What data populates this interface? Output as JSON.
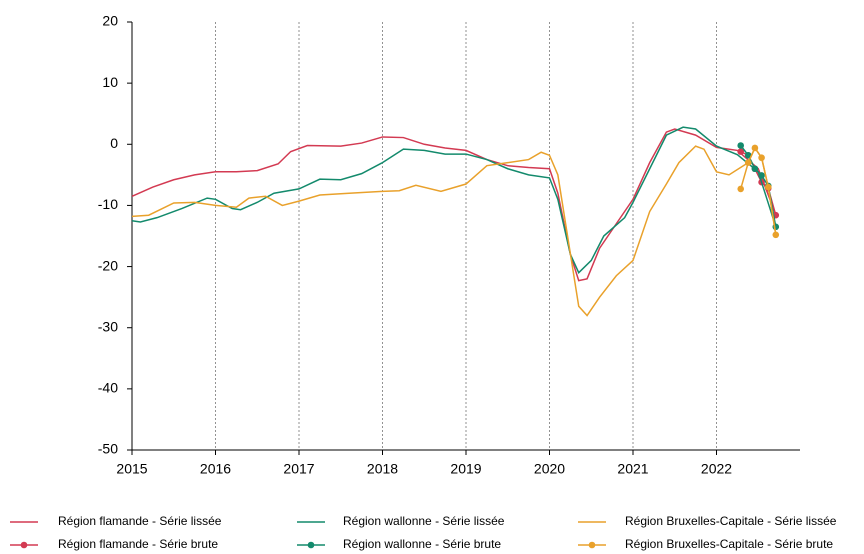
{
  "chart_data": {
    "type": "line",
    "xlim": [
      2015,
      2023
    ],
    "xticks": [
      2015,
      2016,
      2017,
      2018,
      2019,
      2020,
      2021,
      2022
    ],
    "ylim": [
      -50,
      20
    ],
    "yticks": [
      -50,
      -40,
      -30,
      -20,
      -10,
      0,
      10,
      20
    ],
    "grid": "x",
    "legend": "bottom",
    "series": [
      {
        "name": "Région flamande - Série lissée",
        "color": "#d33a52",
        "marker": false,
        "x": [
          2015,
          2015.25,
          2015.5,
          2015.75,
          2016,
          2016.25,
          2016.5,
          2016.75,
          2016.9,
          2017.1,
          2017.5,
          2017.75,
          2018,
          2018.25,
          2018.5,
          2018.75,
          2019,
          2019.25,
          2019.5,
          2019.75,
          2020,
          2020.1,
          2020.25,
          2020.35,
          2020.45,
          2020.6,
          2020.75,
          2021,
          2021.2,
          2021.4,
          2021.5,
          2021.75,
          2022,
          2022.25,
          2022.5,
          2022.71
        ],
        "values": [
          -8.5,
          -7,
          -5.8,
          -5,
          -4.5,
          -4.5,
          -4.3,
          -3.2,
          -1.2,
          -0.2,
          -0.3,
          0.2,
          1.2,
          1.1,
          0,
          -0.6,
          -1,
          -2.5,
          -3.5,
          -3.8,
          -4,
          -8,
          -18,
          -22.3,
          -22,
          -17,
          -14,
          -9,
          -3,
          2,
          2.5,
          1.5,
          -0.5,
          -1,
          -4,
          -11.5
        ]
      },
      {
        "name": "Région flamande - Série brute",
        "color": "#d33a52",
        "marker": true,
        "x": [
          2022.29,
          2022.38,
          2022.46,
          2022.54,
          2022.62,
          2022.71
        ],
        "values": [
          -1.2,
          -1.8,
          -4,
          -6.2,
          -7.2,
          -11.6
        ]
      },
      {
        "name": "Région wallonne - Série lissée",
        "color": "#138a6c",
        "marker": false,
        "x": [
          2015,
          2015.1,
          2015.3,
          2015.6,
          2015.9,
          2016,
          2016.2,
          2016.3,
          2016.5,
          2016.7,
          2017,
          2017.25,
          2017.5,
          2017.75,
          2018,
          2018.25,
          2018.5,
          2018.75,
          2019,
          2019.25,
          2019.5,
          2019.75,
          2020,
          2020.1,
          2020.25,
          2020.35,
          2020.5,
          2020.65,
          2020.9,
          2021,
          2021.2,
          2021.4,
          2021.6,
          2021.75,
          2022,
          2022.25,
          2022.5,
          2022.71
        ],
        "values": [
          -12.5,
          -12.7,
          -12,
          -10.5,
          -8.8,
          -9,
          -10.5,
          -10.7,
          -9.5,
          -8,
          -7.3,
          -5.7,
          -5.8,
          -4.8,
          -3,
          -0.8,
          -1,
          -1.6,
          -1.6,
          -2.5,
          -4,
          -5,
          -5.5,
          -9,
          -18,
          -21,
          -19,
          -15,
          -12,
          -9.5,
          -4,
          1.5,
          2.8,
          2.5,
          -0.3,
          -1.7,
          -4.5,
          -13.5
        ]
      },
      {
        "name": "Région wallonne - Série brute",
        "color": "#138a6c",
        "marker": true,
        "x": [
          2022.29,
          2022.38,
          2022.46,
          2022.54,
          2022.62,
          2022.71
        ],
        "values": [
          -0.2,
          -1.8,
          -4,
          -5.1,
          -6.8,
          -13.5
        ]
      },
      {
        "name": "Région Bruxelles-Capitale - Série lissée",
        "color": "#e9a12b",
        "marker": false,
        "x": [
          2015,
          2015.2,
          2015.5,
          2015.75,
          2016,
          2016.25,
          2016.4,
          2016.6,
          2016.8,
          2017,
          2017.25,
          2017.6,
          2018,
          2018.2,
          2018.4,
          2018.7,
          2019,
          2019.25,
          2019.5,
          2019.75,
          2019.9,
          2020,
          2020.1,
          2020.35,
          2020.45,
          2020.6,
          2020.8,
          2021,
          2021.2,
          2021.4,
          2021.55,
          2021.75,
          2021.85,
          2022,
          2022.15,
          2022.38,
          2022.46,
          2022.54,
          2022.62,
          2022.71
        ],
        "values": [
          -11.8,
          -11.6,
          -9.6,
          -9.5,
          -10,
          -10.3,
          -8.8,
          -8.5,
          -10,
          -9.3,
          -8.3,
          -8,
          -7.7,
          -7.6,
          -6.7,
          -7.7,
          -6.5,
          -3.5,
          -3,
          -2.5,
          -1.3,
          -1.8,
          -5,
          -26.5,
          -28,
          -25,
          -21.5,
          -19,
          -11,
          -6.5,
          -3,
          -0.3,
          -0.8,
          -4.5,
          -5,
          -3,
          -0.6,
          -2.2,
          -7,
          -14.8
        ]
      },
      {
        "name": "Région Bruxelles-Capitale - Série brute",
        "color": "#e9a12b",
        "marker": true,
        "x": [
          2022.29,
          2022.38,
          2022.46,
          2022.54,
          2022.62,
          2022.71
        ],
        "values": [
          -7.3,
          -3,
          -0.6,
          -2.2,
          -7,
          -14.8
        ]
      }
    ]
  }
}
